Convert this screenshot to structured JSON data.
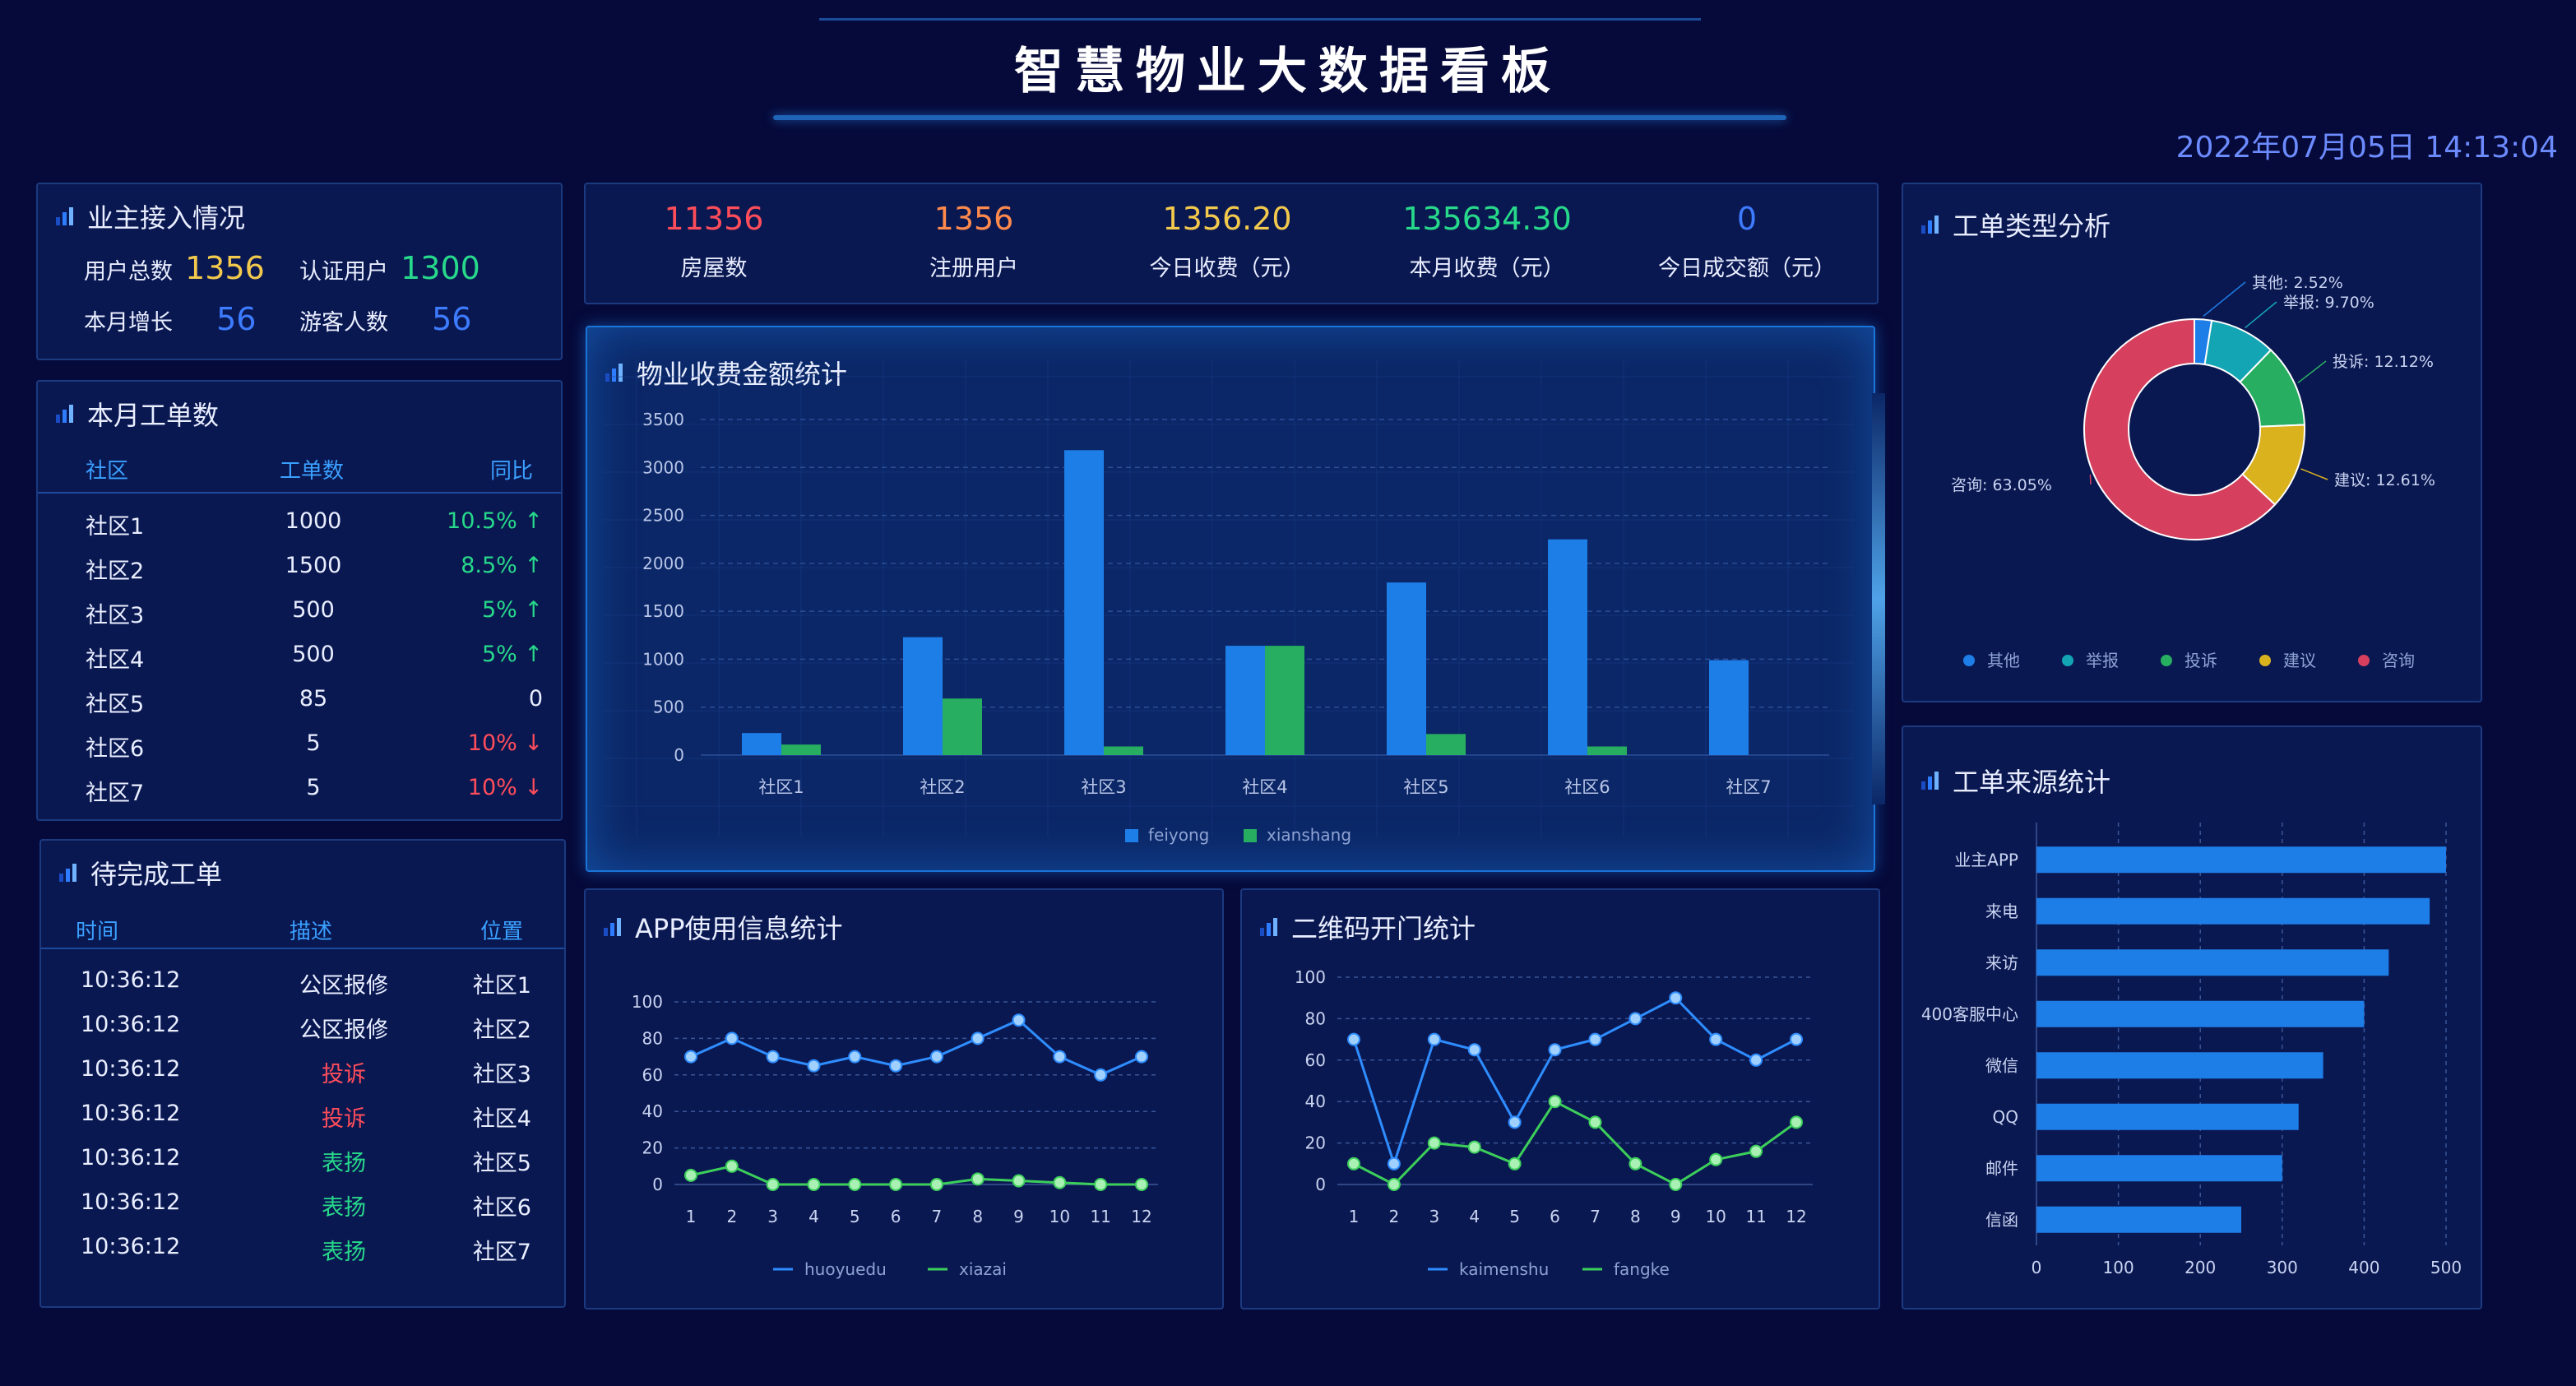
{
  "header": {
    "title": "智慧物业大数据看板",
    "datetime": "2022年07月05日 14:13:04"
  },
  "owner_access": {
    "title": "业主接入情况",
    "items": [
      {
        "label": "用户总数",
        "value": "1356",
        "color": "#f2c94c"
      },
      {
        "label": "认证用户",
        "value": "1300",
        "color": "#27d98a"
      },
      {
        "label": "本月增长",
        "value": "56",
        "color": "#3d7bff"
      },
      {
        "label": "游客人数",
        "value": "56",
        "color": "#3d7bff"
      }
    ]
  },
  "work_orders_month": {
    "title": "本月工单数",
    "headers": [
      "社区",
      "工单数",
      "同比"
    ],
    "rows": [
      {
        "community": "社区1",
        "count": "1000",
        "yoy": "10.5% ↑",
        "trend": "up"
      },
      {
        "community": "社区2",
        "count": "1500",
        "yoy": "8.5% ↑",
        "trend": "up"
      },
      {
        "community": "社区3",
        "count": "500",
        "yoy": "5% ↑",
        "trend": "up"
      },
      {
        "community": "社区4",
        "count": "500",
        "yoy": "5% ↑",
        "trend": "up"
      },
      {
        "community": "社区5",
        "count": "85",
        "yoy": "0",
        "trend": "flat"
      },
      {
        "community": "社区6",
        "count": "5",
        "yoy": "10% ↓",
        "trend": "down"
      },
      {
        "community": "社区7",
        "count": "5",
        "yoy": "10% ↓",
        "trend": "down"
      }
    ]
  },
  "pending_orders": {
    "title": "待完成工单",
    "headers": [
      "时间",
      "描述",
      "位置"
    ],
    "rows": [
      {
        "time": "10:36:12",
        "desc": "公区报修",
        "loc": "社区1",
        "type": "repair"
      },
      {
        "time": "10:36:12",
        "desc": "公区报修",
        "loc": "社区2",
        "type": "repair"
      },
      {
        "time": "10:36:12",
        "desc": "投诉",
        "loc": "社区3",
        "type": "complaint"
      },
      {
        "time": "10:36:12",
        "desc": "投诉",
        "loc": "社区4",
        "type": "complaint"
      },
      {
        "time": "10:36:12",
        "desc": "表扬",
        "loc": "社区5",
        "type": "praise"
      },
      {
        "time": "10:36:12",
        "desc": "表扬",
        "loc": "社区6",
        "type": "praise"
      },
      {
        "time": "10:36:12",
        "desc": "表扬",
        "loc": "社区7",
        "type": "praise"
      }
    ]
  },
  "stats": [
    {
      "value": "11356",
      "label": "房屋数",
      "color": "#ff4d5a"
    },
    {
      "value": "1356",
      "label": "注册用户",
      "color": "#ff8a4c"
    },
    {
      "value": "1356.20",
      "label": "今日收费（元）",
      "color": "#f2c94c"
    },
    {
      "value": "135634.30",
      "label": "本月收费（元）",
      "color": "#27d98a"
    },
    {
      "value": "0",
      "label": "今日成交额（元）",
      "color": "#3d7bff"
    }
  ],
  "colors": {
    "up": "#27d98a",
    "down": "#ff4d5a",
    "flat": "#e9eeff",
    "repair": "#e9eeff",
    "complaint": "#ff4d5a",
    "praise": "#27d98a"
  },
  "panel_titles": {
    "fee": "物业收费金额统计",
    "app": "APP使用信息统计",
    "qr": "二维码开门统计",
    "type": "工单类型分析",
    "source": "工单来源统计"
  },
  "chart_data": [
    {
      "id": "fee",
      "type": "bar",
      "categories": [
        "社区1",
        "社区2",
        "社区3",
        "社区4",
        "社区5",
        "社区6",
        "社区7"
      ],
      "series": [
        {
          "name": "feiyong",
          "values": [
            230,
            1230,
            3180,
            1140,
            1800,
            2250,
            990
          ],
          "color": "#1e7ee8"
        },
        {
          "name": "xianshang",
          "values": [
            110,
            590,
            90,
            1140,
            220,
            90,
            0
          ],
          "color": "#27ae60"
        }
      ],
      "yticks": [
        0,
        500,
        1000,
        1500,
        2000,
        2500,
        3000,
        3500
      ],
      "ylim": [
        0,
        3500
      ]
    },
    {
      "id": "app",
      "type": "line",
      "x": [
        "1",
        "2",
        "3",
        "4",
        "5",
        "6",
        "7",
        "8",
        "9",
        "10",
        "11",
        "12"
      ],
      "series": [
        {
          "name": "huoyuedu",
          "values": [
            70,
            80,
            70,
            65,
            70,
            65,
            70,
            80,
            90,
            70,
            60,
            70
          ],
          "color": "#2e8dff"
        },
        {
          "name": "xiazai",
          "values": [
            5,
            10,
            0,
            0,
            0,
            0,
            0,
            3,
            2,
            1,
            0,
            0
          ],
          "color": "#3ccf5a"
        }
      ],
      "yticks": [
        0,
        20,
        40,
        60,
        80,
        100
      ],
      "ylim": [
        0,
        100
      ]
    },
    {
      "id": "qr",
      "type": "line",
      "x": [
        "1",
        "2",
        "3",
        "4",
        "5",
        "6",
        "7",
        "8",
        "9",
        "10",
        "11",
        "12"
      ],
      "series": [
        {
          "name": "kaimenshu",
          "values": [
            70,
            10,
            70,
            65,
            30,
            65,
            70,
            80,
            90,
            70,
            60,
            70
          ],
          "color": "#2e8dff"
        },
        {
          "name": "fangke",
          "values": [
            10,
            0,
            20,
            18,
            10,
            40,
            30,
            10,
            0,
            12,
            16,
            30
          ],
          "color": "#3ccf5a"
        }
      ],
      "yticks": [
        0,
        20,
        40,
        60,
        80,
        100
      ],
      "ylim": [
        0,
        100
      ]
    },
    {
      "id": "type",
      "type": "pie",
      "slices": [
        {
          "name": "其他",
          "value": 2.52,
          "label": "其他: 2.52%",
          "color": "#1e7ee8"
        },
        {
          "name": "举报",
          "value": 9.7,
          "label": "举报: 9.70%",
          "color": "#14a5b5"
        },
        {
          "name": "投诉",
          "value": 12.12,
          "label": "投诉: 12.12%",
          "color": "#27ae60"
        },
        {
          "name": "建议",
          "value": 12.61,
          "label": "建议: 12.61%",
          "color": "#d9b21e"
        },
        {
          "name": "咨询",
          "value": 63.05,
          "label": "咨询: 63.05%",
          "color": "#d6405e"
        }
      ]
    },
    {
      "id": "source",
      "type": "bar",
      "orientation": "horizontal",
      "categories": [
        "业主APP",
        "来电",
        "来访",
        "400客服中心",
        "微信",
        "QQ",
        "邮件",
        "信函"
      ],
      "values": [
        500,
        480,
        430,
        400,
        350,
        320,
        300,
        250
      ],
      "xticks": [
        0,
        100,
        200,
        300,
        400,
        500
      ],
      "xlim": [
        0,
        500
      ],
      "color": "#1e7ee8"
    }
  ]
}
